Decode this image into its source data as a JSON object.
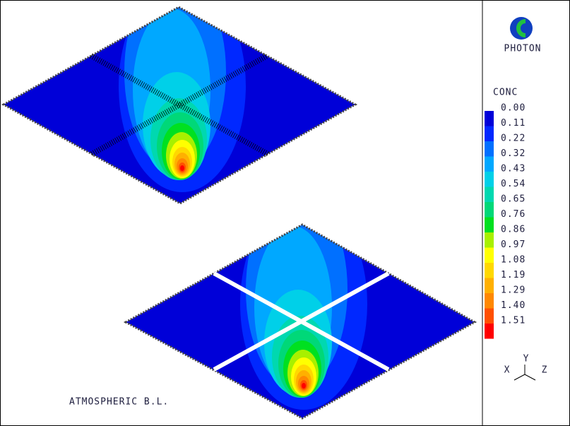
{
  "logo": {
    "text": "PHOTON"
  },
  "legend": {
    "title": "CONC",
    "entries": [
      {
        "label": "0.00",
        "color": "#0000d8"
      },
      {
        "label": "0.11",
        "color": "#0028ff"
      },
      {
        "label": "0.22",
        "color": "#0070ff"
      },
      {
        "label": "0.32",
        "color": "#00a8ff"
      },
      {
        "label": "0.43",
        "color": "#00d0e8"
      },
      {
        "label": "0.54",
        "color": "#00d8b0"
      },
      {
        "label": "0.65",
        "color": "#00d878"
      },
      {
        "label": "0.76",
        "color": "#00e020"
      },
      {
        "label": "0.86",
        "color": "#a8f000"
      },
      {
        "label": "0.97",
        "color": "#ffff00"
      },
      {
        "label": "1.08",
        "color": "#ffd800"
      },
      {
        "label": "1.19",
        "color": "#ffb000"
      },
      {
        "label": "1.29",
        "color": "#ff8800"
      },
      {
        "label": "1.40",
        "color": "#ff5000"
      },
      {
        "label": "1.51",
        "color": "#ff0000"
      }
    ]
  },
  "axes": {
    "x": "X",
    "y": "Y",
    "z": "Z"
  },
  "caption": "ATMOSPHERIC B.L."
}
